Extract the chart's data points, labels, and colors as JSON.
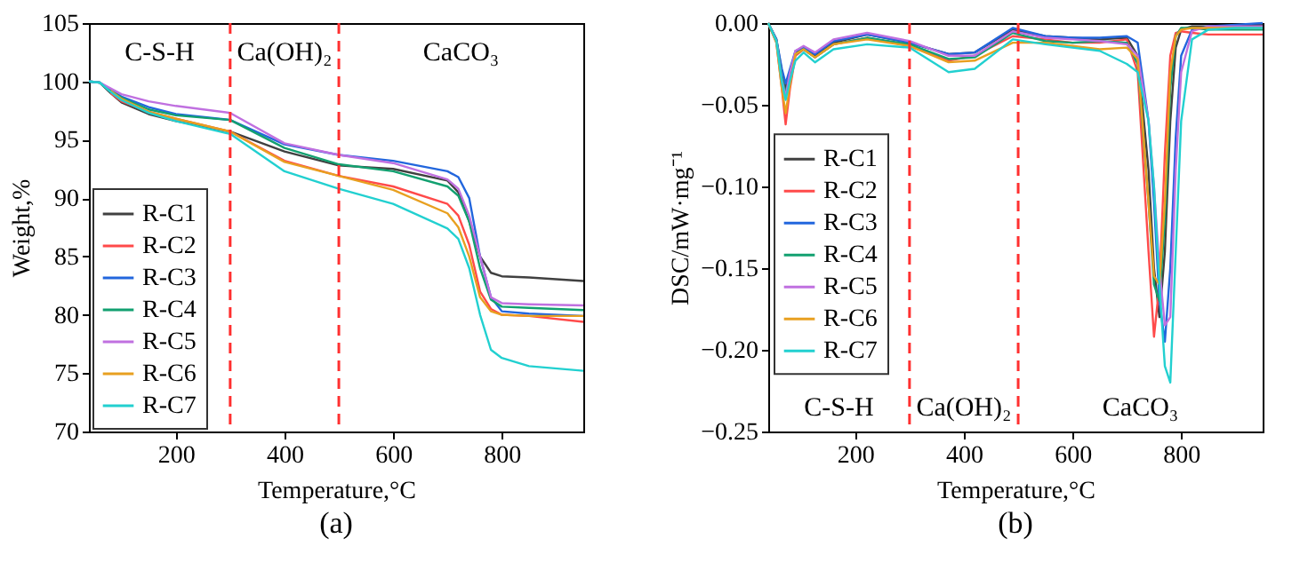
{
  "chart_data": [
    {
      "type": "line",
      "title": "(a)",
      "xlabel": "Temperature,°C",
      "ylabel": "Weight,%",
      "xlim": [
        40,
        950
      ],
      "xticks": [
        200,
        400,
        600,
        800
      ],
      "ylim": [
        70,
        105
      ],
      "yticks": [
        70,
        75,
        80,
        85,
        90,
        95,
        100,
        105
      ],
      "grid": false,
      "legend": "bottom left",
      "line_style": "solid",
      "x": [
        40,
        60,
        80,
        100,
        150,
        200,
        300,
        400,
        500,
        600,
        700,
        720,
        740,
        760,
        780,
        800,
        850,
        950
      ],
      "series": [
        {
          "name": "R-C1",
          "color": "#404040",
          "values": [
            100,
            99.9,
            99,
            98.2,
            97.2,
            96.6,
            95.7,
            94,
            92.8,
            92.5,
            91.5,
            90.5,
            88,
            85,
            83.6,
            83.3,
            83.2,
            82.9
          ]
        },
        {
          "name": "R-C2",
          "color": "#ff4a4a",
          "values": [
            null,
            null,
            99,
            98.3,
            97.4,
            96.8,
            95.7,
            93.2,
            91.9,
            91,
            89.5,
            88.5,
            86,
            82,
            80.5,
            80,
            79.9,
            79.4
          ]
        },
        {
          "name": "R-C3",
          "color": "#2266dd",
          "values": [
            100,
            99.9,
            99.3,
            98.7,
            97.8,
            97.2,
            96.7,
            94.6,
            93.7,
            93.2,
            92.3,
            91.8,
            90,
            85,
            81.5,
            80.3,
            80.1,
            79.9
          ]
        },
        {
          "name": "R-C4",
          "color": "#12a070",
          "values": [
            100,
            99.9,
            99.2,
            98.6,
            97.6,
            97.1,
            96.7,
            94.3,
            92.9,
            92.3,
            91,
            90.2,
            88,
            84,
            81.3,
            80.7,
            80.6,
            80.4
          ]
        },
        {
          "name": "R-C5",
          "color": "#c070e0",
          "values": [
            100,
            99.9,
            99.4,
            98.9,
            98.3,
            97.9,
            97.3,
            94.7,
            93.7,
            93,
            91.6,
            90.8,
            88.5,
            85,
            81.5,
            81,
            80.9,
            80.8
          ]
        },
        {
          "name": "R-C6",
          "color": "#e8a020",
          "values": [
            null,
            null,
            99.2,
            98.5,
            97.4,
            96.8,
            95.7,
            93.1,
            91.9,
            90.7,
            88.7,
            87.5,
            85,
            81.5,
            80.3,
            80,
            79.9,
            79.9
          ]
        },
        {
          "name": "R-C7",
          "color": "#22d0d0",
          "values": [
            100,
            99.9,
            99.1,
            98.4,
            97.3,
            96.6,
            95.5,
            92.3,
            90.8,
            89.5,
            87.4,
            86.5,
            84,
            80,
            77,
            76.3,
            75.6,
            75.2
          ]
        }
      ],
      "ref_lines": [
        {
          "axis": "x",
          "value": 300,
          "color": "#ff3030",
          "line_style": "dashed"
        },
        {
          "axis": "x",
          "value": 500,
          "color": "#ff3030",
          "line_style": "dashed"
        }
      ],
      "annotations": [
        "C-S-H",
        "Ca(OH)₂",
        "CaCO₃"
      ]
    },
    {
      "type": "line",
      "title": "(b)",
      "xlabel": "Temperature,°C",
      "ylabel": "DSC/mW·mg⁻¹",
      "xlim": [
        40,
        950
      ],
      "xticks": [
        200,
        400,
        600,
        800
      ],
      "ylim": [
        -0.25,
        0
      ],
      "yticks": [
        {
          "value": -0.25,
          "label": "−0.25"
        },
        {
          "value": -0.2,
          "label": "−0.20"
        },
        {
          "value": -0.15,
          "label": "−0.15"
        },
        {
          "value": -0.1,
          "label": "−0.10"
        },
        {
          "value": -0.05,
          "label": "−0.05"
        },
        {
          "value": 0,
          "label": "0.00"
        }
      ],
      "grid": false,
      "legend": "left",
      "line_style": "solid",
      "x": [
        40,
        55,
        65,
        72,
        80,
        90,
        105,
        126,
        160,
        222,
        300,
        372,
        420,
        490,
        550,
        600,
        650,
        700,
        720,
        740,
        750,
        760,
        770,
        780,
        790,
        800,
        820,
        850,
        900,
        950
      ],
      "series": [
        {
          "name": "R-C1",
          "color": "#404040",
          "values": [
            0,
            -0.01,
            -0.03,
            -0.04,
            -0.03,
            -0.018,
            -0.015,
            -0.02,
            -0.012,
            -0.007,
            -0.012,
            -0.019,
            -0.018,
            -0.004,
            -0.008,
            -0.009,
            -0.01,
            -0.009,
            -0.02,
            -0.09,
            -0.15,
            -0.18,
            -0.14,
            -0.06,
            -0.015,
            -0.004,
            -0.002,
            -0.002,
            -0.002,
            -0.001
          ]
        },
        {
          "name": "R-C2",
          "color": "#ff4a4a",
          "values": [
            0,
            -0.012,
            -0.04,
            -0.062,
            -0.04,
            -0.02,
            -0.016,
            -0.021,
            -0.013,
            -0.009,
            -0.014,
            -0.023,
            -0.02,
            -0.008,
            -0.01,
            -0.012,
            -0.012,
            -0.01,
            -0.03,
            -0.14,
            -0.192,
            -0.16,
            -0.08,
            -0.02,
            -0.006,
            -0.005,
            -0.006,
            -0.007,
            -0.007,
            -0.007
          ]
        },
        {
          "name": "R-C3",
          "color": "#2266dd",
          "values": [
            0,
            -0.01,
            -0.028,
            -0.037,
            -0.028,
            -0.017,
            -0.015,
            -0.019,
            -0.011,
            -0.007,
            -0.012,
            -0.019,
            -0.018,
            -0.003,
            -0.008,
            -0.009,
            -0.009,
            -0.008,
            -0.012,
            -0.06,
            -0.11,
            -0.17,
            -0.195,
            -0.15,
            -0.07,
            -0.02,
            -0.004,
            -0.002,
            -0.001,
            0
          ]
        },
        {
          "name": "R-C4",
          "color": "#12a070",
          "values": [
            0,
            -0.011,
            -0.033,
            -0.043,
            -0.032,
            -0.019,
            -0.016,
            -0.021,
            -0.013,
            -0.009,
            -0.013,
            -0.022,
            -0.021,
            -0.006,
            -0.011,
            -0.012,
            -0.011,
            -0.012,
            -0.025,
            -0.11,
            -0.16,
            -0.17,
            -0.12,
            -0.04,
            -0.008,
            -0.003,
            -0.003,
            -0.004,
            -0.004,
            -0.004
          ]
        },
        {
          "name": "R-C5",
          "color": "#c070e0",
          "values": [
            0,
            -0.011,
            -0.035,
            -0.045,
            -0.03,
            -0.017,
            -0.014,
            -0.018,
            -0.01,
            -0.006,
            -0.011,
            -0.02,
            -0.02,
            -0.005,
            -0.009,
            -0.01,
            -0.011,
            -0.013,
            -0.02,
            -0.06,
            -0.1,
            -0.15,
            -0.185,
            -0.18,
            -0.09,
            -0.03,
            -0.005,
            -0.002,
            -0.002,
            -0.002
          ]
        },
        {
          "name": "R-C6",
          "color": "#e8a020",
          "values": [
            0,
            -0.012,
            -0.04,
            -0.055,
            -0.038,
            -0.019,
            -0.016,
            -0.021,
            -0.013,
            -0.01,
            -0.014,
            -0.024,
            -0.023,
            -0.012,
            -0.012,
            -0.014,
            -0.016,
            -0.015,
            -0.022,
            -0.11,
            -0.155,
            -0.16,
            -0.11,
            -0.03,
            -0.008,
            -0.004,
            -0.003,
            -0.003,
            -0.003,
            -0.003
          ]
        },
        {
          "name": "R-C7",
          "color": "#22d0d0",
          "values": [
            0,
            -0.011,
            -0.036,
            -0.047,
            -0.035,
            -0.023,
            -0.018,
            -0.024,
            -0.016,
            -0.013,
            -0.015,
            -0.03,
            -0.028,
            -0.01,
            -0.013,
            -0.015,
            -0.017,
            -0.025,
            -0.03,
            -0.06,
            -0.1,
            -0.16,
            -0.21,
            -0.22,
            -0.14,
            -0.06,
            -0.01,
            -0.004,
            -0.003,
            -0.003
          ]
        }
      ],
      "ref_lines": [
        {
          "axis": "x",
          "value": 300,
          "color": "#ff3030",
          "line_style": "dashed"
        },
        {
          "axis": "x",
          "value": 500,
          "color": "#ff3030",
          "line_style": "dashed"
        }
      ],
      "annotations": [
        "C-S-H",
        "Ca(OH)₂",
        "CaCO₃"
      ]
    }
  ]
}
